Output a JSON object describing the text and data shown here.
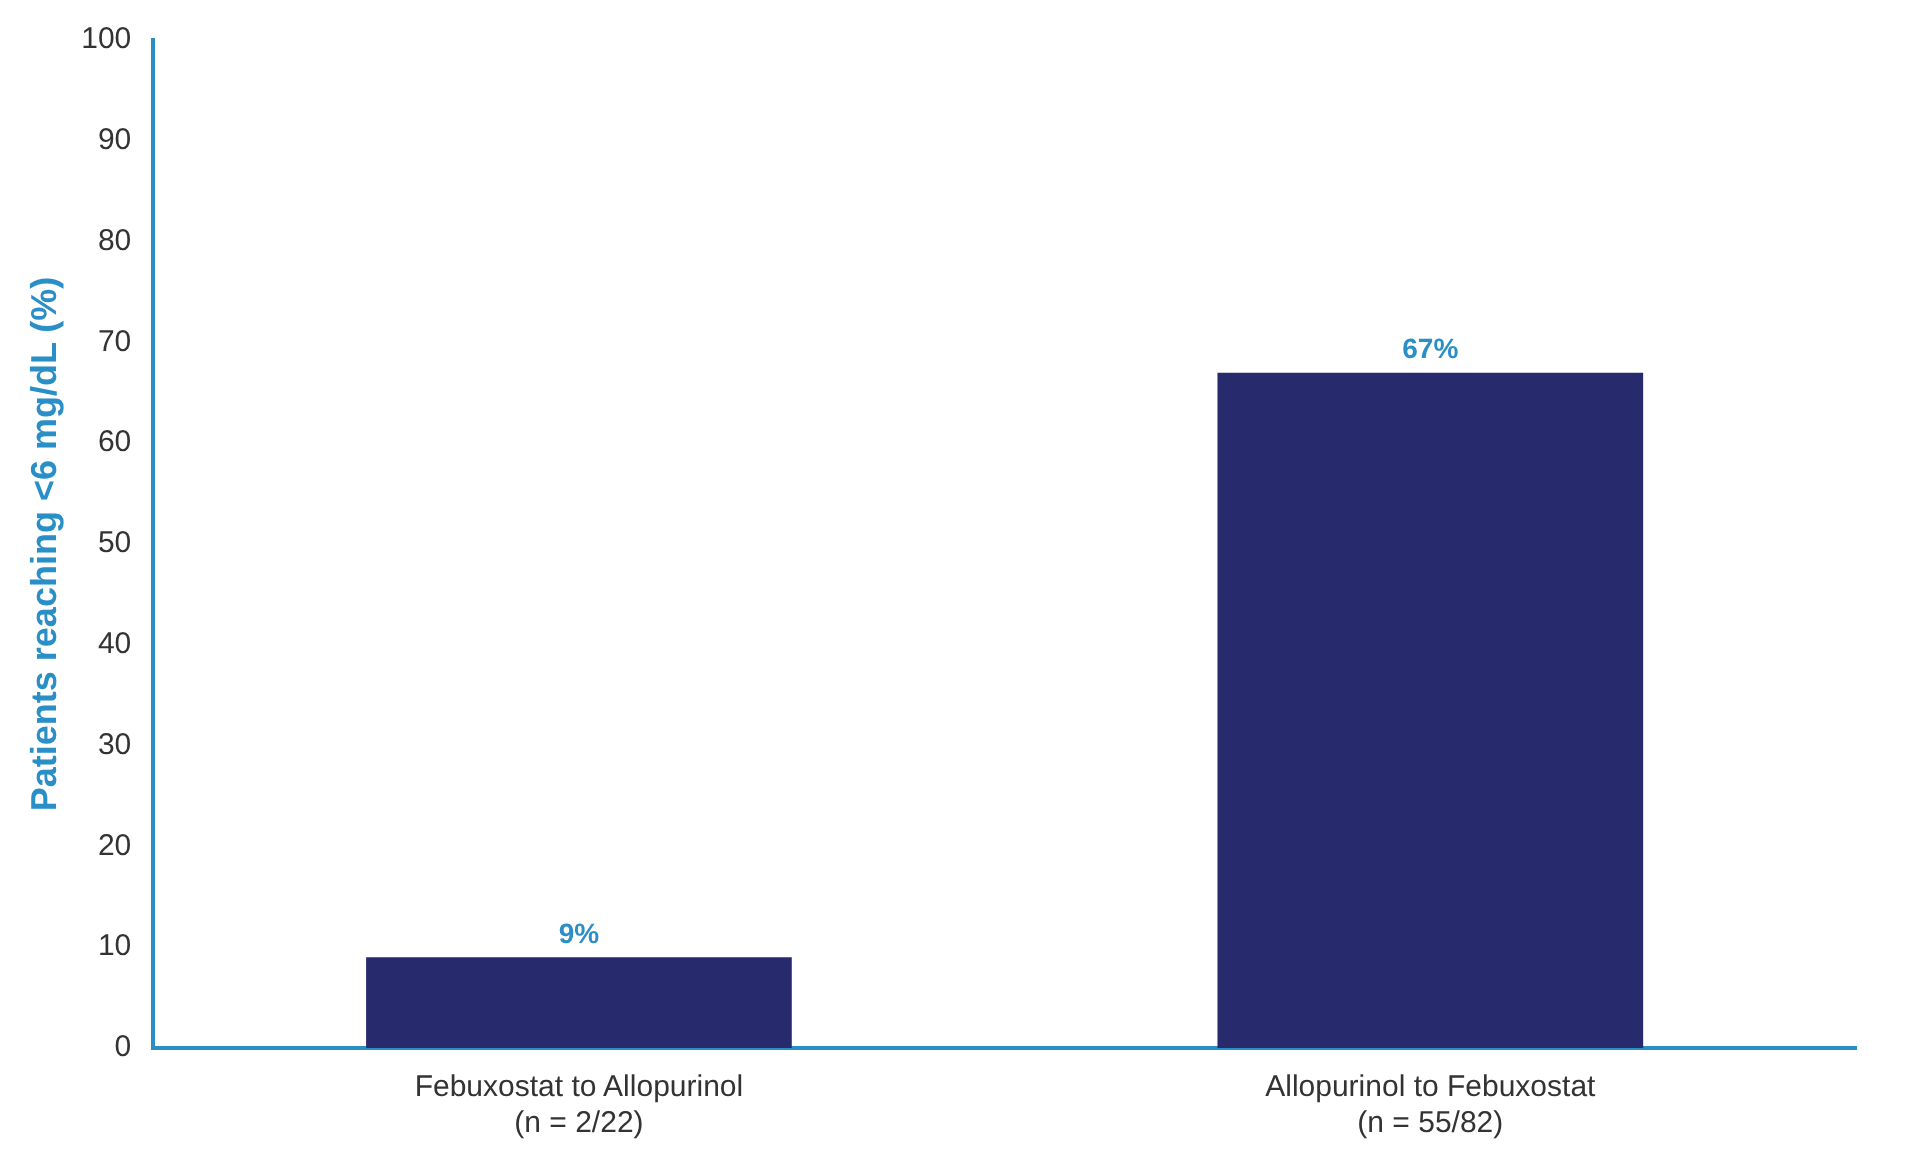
{
  "chart_data": {
    "type": "bar",
    "ylabel": "Patients reaching <6 mg/dL (%)",
    "categories": [
      "Febuxostat to Allopurinol\n(n = 2/22)",
      "Allopurinol to Febuxostat\n(n = 55/82)"
    ],
    "values": [
      9,
      67
    ],
    "value_labels": [
      "9%",
      "67%"
    ],
    "color": "#282a6e",
    "ylim": [
      0,
      100
    ],
    "yticks": [
      0,
      10,
      20,
      30,
      40,
      50,
      60,
      70,
      80,
      90,
      100
    ],
    "grid": false,
    "legend": false
  }
}
